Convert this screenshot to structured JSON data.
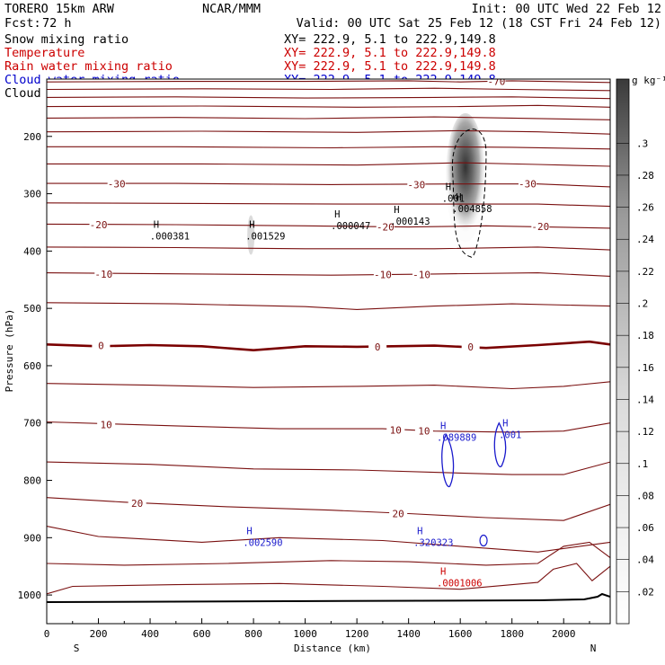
{
  "header": {
    "model": "TORERO  15km ARW",
    "org": "NCAR/MMM",
    "init": "Init: 00 UTC Wed 22 Feb 12",
    "fcst_label": "Fcst:",
    "fcst_value": "72 h",
    "valid": "Valid: 00 UTC Sat 25 Feb 12 (18 CST Fri 24 Feb 12)"
  },
  "fields": [
    {
      "name": "Snow mixing ratio",
      "xy": "XY= 222.9,  5.1 to 222.9,149.8",
      "color": "#000000",
      "xy_color": "#000000"
    },
    {
      "name": "Temperature",
      "xy": "XY= 222.9,  5.1 to 222.9,149.8",
      "color": "#cc0000",
      "xy_color": "#cc0000"
    },
    {
      "name": "Rain water mixing ratio",
      "xy": "XY= 222.9,  5.1 to 222.9,149.8",
      "color": "#cc0000",
      "xy_color": "#cc0000"
    },
    {
      "name": "Cloud water mixing ratio",
      "xy": "XY= 222.9,  5.1 to 222.9,149.8",
      "color": "#0000cc",
      "xy_color": "#0000cc"
    },
    {
      "name": "Cloud ice mixing ratio",
      "xy": "XY= 222.9,  5.1 to 222.9,149.8",
      "color": "#000000",
      "xy_color": "#000000"
    }
  ],
  "colors": {
    "temperature": "#7a1010",
    "zero_isotherm": "#7a0000",
    "cloud_water": "#1a1acc",
    "rain": "#cc0000",
    "ice": "#000000"
  },
  "chart_data": {
    "type": "cross-section",
    "xlabel": "Distance (km)",
    "ylabel": "Pressure (hPa)",
    "xlim": [
      0,
      2180
    ],
    "ylim": [
      1050,
      100
    ],
    "x_ticks": [
      0,
      200,
      400,
      600,
      800,
      1000,
      1200,
      1400,
      1600,
      1800,
      2000
    ],
    "x_tick_labels": [
      "0",
      "200",
      "400",
      "600",
      "800",
      "1000",
      "1200",
      "1400",
      "1600",
      "1800",
      "2000"
    ],
    "y_ticks": [
      200,
      300,
      400,
      500,
      600,
      700,
      800,
      900,
      1000
    ],
    "y_tick_labels": [
      "200",
      "300",
      "400",
      "500",
      "600",
      "700",
      "800",
      "900",
      "1000"
    ],
    "endpoints": {
      "left": "S",
      "right": "N"
    },
    "temperature_isotherms": [
      {
        "value": -70,
        "points": [
          [
            0,
            105
          ],
          [
            500,
            104
          ],
          [
            1000,
            104
          ],
          [
            1400,
            103
          ],
          [
            1600,
            105
          ],
          [
            1800,
            103
          ],
          [
            2180,
            106
          ]
        ]
      },
      {
        "value": -65,
        "points": [
          [
            0,
            118
          ],
          [
            600,
            117
          ],
          [
            1100,
            118
          ],
          [
            1500,
            116
          ],
          [
            1800,
            118
          ],
          [
            2180,
            120
          ]
        ]
      },
      {
        "value": -60,
        "points": [
          [
            0,
            132
          ],
          [
            500,
            131
          ],
          [
            1000,
            133
          ],
          [
            1500,
            132
          ],
          [
            1800,
            131
          ],
          [
            2180,
            134
          ]
        ]
      },
      {
        "value": -55,
        "points": [
          [
            0,
            148
          ],
          [
            600,
            147
          ],
          [
            1200,
            149
          ],
          [
            1600,
            148
          ],
          [
            1900,
            146
          ],
          [
            2180,
            149
          ]
        ]
      },
      {
        "value": -50,
        "points": [
          [
            0,
            168
          ],
          [
            500,
            167
          ],
          [
            1000,
            169
          ],
          [
            1500,
            166
          ],
          [
            1800,
            168
          ],
          [
            2180,
            171
          ]
        ]
      },
      {
        "value": -45,
        "points": [
          [
            0,
            192
          ],
          [
            600,
            191
          ],
          [
            1200,
            193
          ],
          [
            1600,
            190
          ],
          [
            1900,
            192
          ],
          [
            2180,
            196
          ]
        ]
      },
      {
        "value": -40,
        "points": [
          [
            0,
            218
          ],
          [
            500,
            218
          ],
          [
            1100,
            220
          ],
          [
            1500,
            218
          ],
          [
            1800,
            219
          ],
          [
            2180,
            222
          ]
        ]
      },
      {
        "value": -35,
        "points": [
          [
            0,
            248
          ],
          [
            600,
            248
          ],
          [
            1200,
            250
          ],
          [
            1600,
            246
          ],
          [
            1900,
            249
          ],
          [
            2180,
            252
          ]
        ]
      },
      {
        "value": -30,
        "points": [
          [
            0,
            282
          ],
          [
            500,
            282
          ],
          [
            1100,
            284
          ],
          [
            1600,
            283
          ],
          [
            1900,
            283
          ],
          [
            2180,
            288
          ]
        ]
      },
      {
        "value": -25,
        "points": [
          [
            0,
            316
          ],
          [
            600,
            317
          ],
          [
            1200,
            318
          ],
          [
            1600,
            318
          ],
          [
            1900,
            318
          ],
          [
            2180,
            322
          ]
        ]
      },
      {
        "value": -20,
        "points": [
          [
            0,
            353
          ],
          [
            500,
            354
          ],
          [
            1000,
            356
          ],
          [
            1400,
            358
          ],
          [
            1700,
            356
          ],
          [
            2180,
            360
          ]
        ]
      },
      {
        "value": -15,
        "points": [
          [
            0,
            393
          ],
          [
            500,
            394
          ],
          [
            1000,
            396
          ],
          [
            1500,
            396
          ],
          [
            1900,
            393
          ],
          [
            2180,
            398
          ]
        ]
      },
      {
        "value": -10,
        "points": [
          [
            0,
            438
          ],
          [
            600,
            440
          ],
          [
            1100,
            442
          ],
          [
            1500,
            440
          ],
          [
            1900,
            438
          ],
          [
            2180,
            444
          ]
        ]
      },
      {
        "value": -5,
        "points": [
          [
            0,
            490
          ],
          [
            500,
            492
          ],
          [
            1000,
            497
          ],
          [
            1200,
            502
          ],
          [
            1500,
            496
          ],
          [
            1800,
            492
          ],
          [
            2180,
            496
          ]
        ]
      },
      {
        "value": 0,
        "points": [
          [
            0,
            563
          ],
          [
            200,
            566
          ],
          [
            400,
            564
          ],
          [
            600,
            566
          ],
          [
            800,
            573
          ],
          [
            1000,
            566
          ],
          [
            1200,
            567
          ],
          [
            1500,
            565
          ],
          [
            1700,
            569
          ],
          [
            1900,
            564
          ],
          [
            2100,
            558
          ],
          [
            2180,
            563
          ]
        ]
      },
      {
        "value": 5,
        "points": [
          [
            0,
            631
          ],
          [
            400,
            634
          ],
          [
            800,
            638
          ],
          [
            1200,
            636
          ],
          [
            1500,
            634
          ],
          [
            1800,
            640
          ],
          [
            2000,
            636
          ],
          [
            2180,
            628
          ]
        ]
      },
      {
        "value": 10,
        "points": [
          [
            0,
            698
          ],
          [
            500,
            705
          ],
          [
            900,
            710
          ],
          [
            1300,
            710
          ],
          [
            1500,
            714
          ],
          [
            1800,
            716
          ],
          [
            2000,
            714
          ],
          [
            2180,
            700
          ]
        ]
      },
      {
        "value": 15,
        "points": [
          [
            0,
            768
          ],
          [
            400,
            772
          ],
          [
            800,
            780
          ],
          [
            1200,
            782
          ],
          [
            1500,
            786
          ],
          [
            1800,
            790
          ],
          [
            2000,
            790
          ],
          [
            2180,
            768
          ]
        ]
      },
      {
        "value": 20,
        "points": [
          [
            0,
            830
          ],
          [
            300,
            838
          ],
          [
            700,
            846
          ],
          [
            1100,
            852
          ],
          [
            1400,
            858
          ],
          [
            1700,
            865
          ],
          [
            2000,
            870
          ],
          [
            2180,
            842
          ]
        ]
      },
      {
        "value": 25,
        "points": [
          [
            0,
            880
          ],
          [
            200,
            898
          ],
          [
            600,
            908
          ],
          [
            900,
            900
          ],
          [
            1300,
            905
          ],
          [
            1600,
            915
          ],
          [
            1900,
            925
          ],
          [
            2180,
            908
          ]
        ]
      },
      {
        "value": 30,
        "points": [
          [
            0,
            945
          ],
          [
            300,
            948
          ],
          [
            700,
            945
          ],
          [
            1100,
            940
          ],
          [
            1400,
            942
          ],
          [
            1700,
            948
          ],
          [
            1900,
            945
          ],
          [
            2000,
            915
          ],
          [
            2100,
            908
          ],
          [
            2180,
            935
          ]
        ]
      },
      {
        "value": 35,
        "points": [
          [
            0,
            998
          ],
          [
            100,
            985
          ],
          [
            500,
            982
          ],
          [
            900,
            980
          ],
          [
            1300,
            985
          ],
          [
            1600,
            990
          ],
          [
            1900,
            978
          ],
          [
            1960,
            955
          ],
          [
            2050,
            945
          ],
          [
            2110,
            975
          ],
          [
            2180,
            950
          ]
        ]
      }
    ],
    "temperature_labels": [
      {
        "text": "-70",
        "x": 1740,
        "p": 104
      },
      {
        "text": "-30",
        "x": 270,
        "p": 283
      },
      {
        "text": "-30",
        "x": 1430,
        "p": 284
      },
      {
        "text": "-30",
        "x": 1860,
        "p": 283
      },
      {
        "text": "-20",
        "x": 200,
        "p": 354
      },
      {
        "text": "-20",
        "x": 1310,
        "p": 358
      },
      {
        "text": "-20",
        "x": 1910,
        "p": 357
      },
      {
        "text": "-10",
        "x": 220,
        "p": 440
      },
      {
        "text": "-10",
        "x": 1300,
        "p": 441
      },
      {
        "text": "-10",
        "x": 1450,
        "p": 441
      },
      {
        "text": "0",
        "x": 210,
        "p": 565
      },
      {
        "text": "0",
        "x": 1280,
        "p": 567
      },
      {
        "text": "0",
        "x": 1640,
        "p": 567
      },
      {
        "text": "10",
        "x": 230,
        "p": 703
      },
      {
        "text": "10",
        "x": 1350,
        "p": 712
      },
      {
        "text": "10",
        "x": 1460,
        "p": 714
      },
      {
        "text": "20",
        "x": 350,
        "p": 840
      },
      {
        "text": "20",
        "x": 1360,
        "p": 858
      }
    ],
    "maxima_labels": [
      {
        "field": "snow",
        "text": ".000381",
        "x": 420,
        "p": 366
      },
      {
        "field": "snow",
        "text": ".001529",
        "x": 790,
        "p": 366
      },
      {
        "field": "snow",
        "text": ".000047",
        "x": 1120,
        "p": 348
      },
      {
        "field": "snow",
        "text": ".000143",
        "x": 1350,
        "p": 340
      },
      {
        "field": "snow",
        "text": ".001",
        "x": 1550,
        "p": 300
      },
      {
        "field": "snow",
        "text": ".004858",
        "x": 1590,
        "p": 318
      },
      {
        "field": "cloud_water",
        "text": ".089889",
        "x": 1530,
        "p": 717
      },
      {
        "field": "cloud_water",
        "text": ".001",
        "x": 1770,
        "p": 712
      },
      {
        "field": "cloud_water",
        "text": ".002590",
        "x": 780,
        "p": 900
      },
      {
        "field": "cloud_water",
        "text": ".320323",
        "x": 1440,
        "p": 900
      },
      {
        "field": "rain",
        "text": ".0001006",
        "x": 1530,
        "p": 971
      }
    ],
    "snow_core": {
      "x": 1620,
      "p_top": 175,
      "p_bottom": 400,
      "max": 0.34
    },
    "colorbar": {
      "unit": "g kg⁻¹",
      "ticks": [
        ".02",
        ".04",
        ".06",
        ".08",
        ".1",
        ".12",
        ".14",
        ".16",
        ".18",
        ".2",
        ".22",
        ".24",
        ".26",
        ".28",
        ".3"
      ],
      "min": 0,
      "max": 0.34
    }
  }
}
